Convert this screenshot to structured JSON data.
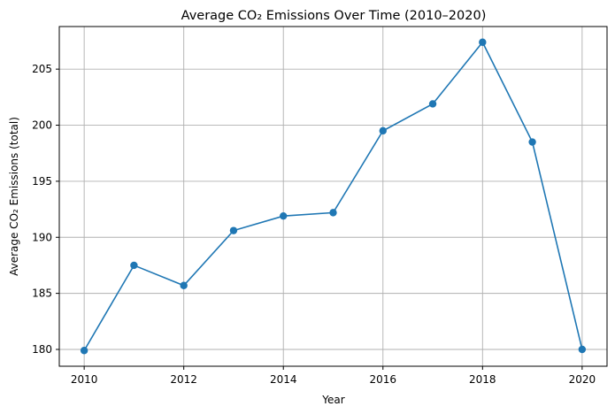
{
  "chart_data": {
    "type": "line",
    "title": "Average CO₂ Emissions Over Time (2010–2020)",
    "xlabel": "Year",
    "ylabel": "Average CO₂ Emissions (total)",
    "x": [
      2010,
      2011,
      2012,
      2013,
      2014,
      2015,
      2016,
      2017,
      2018,
      2019,
      2020
    ],
    "series": [
      {
        "values": [
          179.9,
          187.5,
          185.7,
          190.6,
          191.9,
          192.2,
          199.5,
          201.9,
          207.4,
          198.5,
          180.0
        ],
        "color": "#1f77b4",
        "marker": "circle"
      }
    ],
    "xlim": [
      2009.5,
      2020.5
    ],
    "ylim": [
      178.5,
      208.8
    ],
    "xticks": [
      2010,
      2012,
      2014,
      2016,
      2018,
      2020
    ],
    "yticks": [
      180,
      185,
      190,
      195,
      200,
      205
    ],
    "grid": true,
    "legend": "none"
  }
}
